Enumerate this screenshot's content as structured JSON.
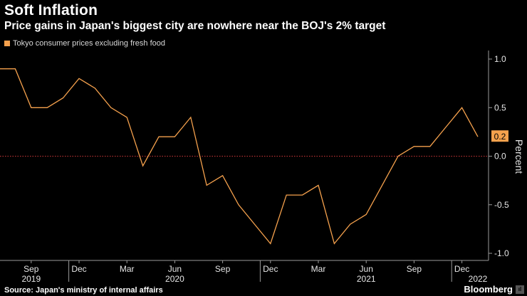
{
  "header": {
    "title": "Soft Inflation",
    "subtitle": "Price gains in Japan's biggest city are nowhere near the BOJ's 2% target"
  },
  "footer": {
    "source": "Source: Japan's ministry of internal affairs",
    "brand": "Bloomberg",
    "badge": "ıl"
  },
  "colors": {
    "line": "#f5a14d",
    "reference_line": "#d0393a",
    "axis": "#9a9a9a",
    "label_bg": "#f5a14d"
  },
  "chart_data": {
    "type": "line",
    "title": "Soft Inflation",
    "subtitle": "Price gains in Japan's biggest city are nowhere near the BOJ's 2% target",
    "ylabel": "Percent",
    "ylim": [
      -1.0,
      1.0
    ],
    "yticks": [
      "1.0",
      "0.5",
      "0.0",
      "-0.5",
      "-1.0"
    ],
    "ytick_values": [
      1.0,
      0.5,
      0.0,
      -0.5,
      -1.0
    ],
    "reference_line": 0.0,
    "legend": [
      "Tokyo consumer prices excluding fresh food"
    ],
    "last_value_label": "0.2",
    "x_month_ticks": [
      "Sep",
      "Dec",
      "Mar",
      "Jun",
      "Sep",
      "Dec",
      "Mar",
      "Jun",
      "Sep",
      "Dec"
    ],
    "x_month_tick_index": [
      2,
      5,
      8,
      11,
      14,
      17,
      20,
      23,
      26,
      29
    ],
    "x_year_labels": [
      "2019",
      "2020",
      "2021",
      "2022"
    ],
    "x_year_label_index": [
      2,
      11,
      23,
      30
    ],
    "x_year_separator_index": [
      4,
      16,
      28
    ],
    "series": [
      {
        "name": "Tokyo consumer prices excluding fresh food",
        "dates": [
          "2019-07",
          "2019-08",
          "2019-09",
          "2019-10",
          "2019-11",
          "2019-12",
          "2020-01",
          "2020-02",
          "2020-03",
          "2020-04",
          "2020-05",
          "2020-06",
          "2020-07",
          "2020-08",
          "2020-09",
          "2020-10",
          "2020-11",
          "2020-12",
          "2021-01",
          "2021-02",
          "2021-03",
          "2021-04",
          "2021-05",
          "2021-06",
          "2021-07",
          "2021-08",
          "2021-09",
          "2021-10",
          "2021-11",
          "2021-12",
          "2022-01"
        ],
        "values": [
          0.9,
          0.9,
          0.5,
          0.5,
          0.6,
          0.8,
          0.7,
          0.5,
          0.4,
          -0.1,
          0.2,
          0.2,
          0.4,
          -0.3,
          -0.2,
          -0.5,
          -0.7,
          -0.9,
          -0.4,
          -0.4,
          -0.3,
          -0.9,
          -0.7,
          -0.6,
          -0.3,
          0.0,
          0.1,
          0.1,
          0.3,
          0.5,
          0.2
        ]
      }
    ]
  }
}
